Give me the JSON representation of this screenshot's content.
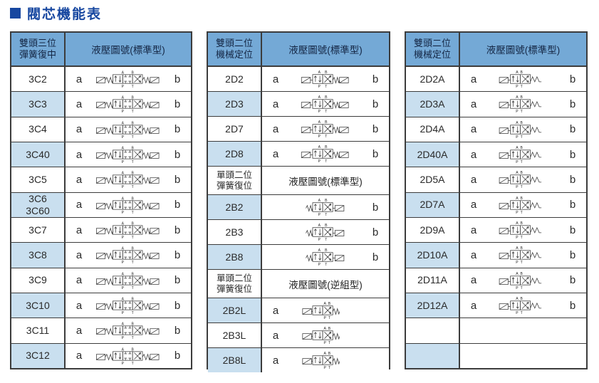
{
  "title": {
    "text": "閥芯機能表"
  },
  "colors": {
    "title": "#1747A0",
    "header_bg": "#74A9D6",
    "row_alt_bg": "#C9DFEF",
    "border": "#3c3c3c",
    "symbol_stroke": "#3f3f3f"
  },
  "diagram_ports": {
    "a": "A",
    "b": "B",
    "p": "P",
    "t": "T"
  },
  "tables": [
    {
      "header_model": "雙頭三位\n彈簧復中",
      "header_diagram": "液壓圖號(標準型)",
      "rows": [
        {
          "type": "row",
          "model": "3C2",
          "a": "a",
          "b": "b",
          "diagram": "c3",
          "alt": false
        },
        {
          "type": "row",
          "model": "3C3",
          "a": "a",
          "b": "b",
          "diagram": "c3",
          "alt": true
        },
        {
          "type": "row",
          "model": "3C4",
          "a": "a",
          "b": "b",
          "diagram": "c3",
          "alt": false
        },
        {
          "type": "row",
          "model": "3C40",
          "a": "a",
          "b": "b",
          "diagram": "c3",
          "alt": true
        },
        {
          "type": "row",
          "model": "3C5",
          "a": "a",
          "b": "b",
          "diagram": "c3",
          "alt": false
        },
        {
          "type": "row",
          "model": "3C6\n3C60",
          "a": "a",
          "b": "b",
          "diagram": "c3",
          "alt": true
        },
        {
          "type": "row",
          "model": "3C7",
          "a": "a",
          "b": "b",
          "diagram": "c3",
          "alt": false
        },
        {
          "type": "row",
          "model": "3C8",
          "a": "a",
          "b": "b",
          "diagram": "c3",
          "alt": true
        },
        {
          "type": "row",
          "model": "3C9",
          "a": "a",
          "b": "b",
          "diagram": "c3",
          "alt": false
        },
        {
          "type": "row",
          "model": "3C10",
          "a": "a",
          "b": "b",
          "diagram": "c3",
          "alt": true
        },
        {
          "type": "row",
          "model": "3C11",
          "a": "a",
          "b": "b",
          "diagram": "c3",
          "alt": false
        },
        {
          "type": "row",
          "model": "3C12",
          "a": "a",
          "b": "b",
          "diagram": "c3",
          "alt": true
        }
      ]
    },
    {
      "header_model": "雙頭二位\n機械定位",
      "header_diagram": "液壓圖號(標準型)",
      "rows": [
        {
          "type": "row",
          "model": "2D2",
          "a": "a",
          "b": "b",
          "diagram": "d2",
          "alt": false
        },
        {
          "type": "row",
          "model": "2D3",
          "a": "a",
          "b": "b",
          "diagram": "d2",
          "alt": true
        },
        {
          "type": "row",
          "model": "2D7",
          "a": "a",
          "b": "b",
          "diagram": "d2",
          "alt": false
        },
        {
          "type": "row",
          "model": "2D8",
          "a": "a",
          "b": "b",
          "diagram": "d2",
          "alt": true
        },
        {
          "type": "subheader",
          "model": "單頭二位\n彈簧復位",
          "label": "液壓圖號(標準型)"
        },
        {
          "type": "row",
          "model": "2B2",
          "a": "",
          "b": "b",
          "diagram": "b2",
          "alt": true
        },
        {
          "type": "row",
          "model": "2B3",
          "a": "",
          "b": "b",
          "diagram": "b2",
          "alt": false
        },
        {
          "type": "row",
          "model": "2B8",
          "a": "",
          "b": "b",
          "diagram": "b2",
          "alt": true
        },
        {
          "type": "subheader",
          "model": "單頭二位\n彈簧復位",
          "label": "液壓圖號(逆組型)"
        },
        {
          "type": "row",
          "model": "2B2L",
          "a": "a",
          "b": "",
          "diagram": "b2l",
          "alt": true
        },
        {
          "type": "row",
          "model": "2B3L",
          "a": "a",
          "b": "",
          "diagram": "b2l",
          "alt": false
        },
        {
          "type": "row",
          "model": "2B8L",
          "a": "a",
          "b": "",
          "diagram": "b2l",
          "alt": true
        }
      ]
    },
    {
      "header_model": "雙頭二位\n機械定位",
      "header_diagram": "液壓圖號(標準型)",
      "rows": [
        {
          "type": "row",
          "model": "2D2A",
          "a": "a",
          "b": "b",
          "diagram": "d2a",
          "alt": false
        },
        {
          "type": "row",
          "model": "2D3A",
          "a": "a",
          "b": "b",
          "diagram": "d2a",
          "alt": true
        },
        {
          "type": "row",
          "model": "2D4A",
          "a": "a",
          "b": "b",
          "diagram": "d2a",
          "alt": false
        },
        {
          "type": "row",
          "model": "2D40A",
          "a": "a",
          "b": "b",
          "diagram": "d2a",
          "alt": true
        },
        {
          "type": "row",
          "model": "2D5A",
          "a": "a",
          "b": "b",
          "diagram": "d2a",
          "alt": false
        },
        {
          "type": "row",
          "model": "2D7A",
          "a": "a",
          "b": "b",
          "diagram": "d2a",
          "alt": true
        },
        {
          "type": "row",
          "model": "2D9A",
          "a": "a",
          "b": "b",
          "diagram": "d2a",
          "alt": false
        },
        {
          "type": "row",
          "model": "2D10A",
          "a": "a",
          "b": "b",
          "diagram": "d2a",
          "alt": true
        },
        {
          "type": "row",
          "model": "2D11A",
          "a": "a",
          "b": "b",
          "diagram": "d2a",
          "alt": false
        },
        {
          "type": "row",
          "model": "2D12A",
          "a": "a",
          "b": "b",
          "diagram": "d2a",
          "alt": true
        },
        {
          "type": "row",
          "model": "",
          "a": "",
          "b": "",
          "diagram": "none",
          "alt": false
        },
        {
          "type": "row",
          "model": "",
          "a": "",
          "b": "",
          "diagram": "none",
          "alt": true
        }
      ]
    }
  ]
}
